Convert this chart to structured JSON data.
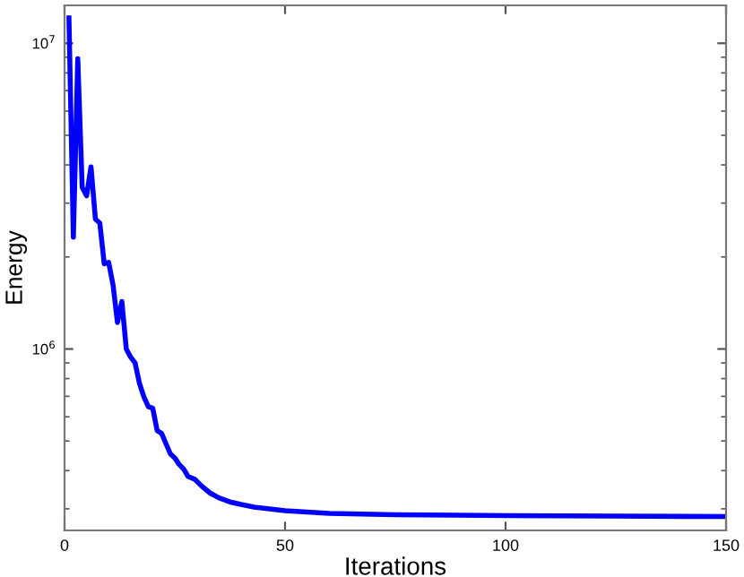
{
  "chart_data": {
    "type": "line",
    "xlabel": "Iterations",
    "ylabel": "Energy",
    "log": "y",
    "xlim": [
      0,
      150
    ],
    "xticks": [
      0,
      50,
      100,
      150
    ],
    "ylim": [
      255000,
      13300000
    ],
    "yticks": [
      {
        "value": 1000000,
        "label": "10$^{6}$"
      },
      {
        "value": 10000000,
        "label": "10$^{7}$"
      }
    ],
    "grid": false,
    "legend": false,
    "marker": "none",
    "line_style": "solid",
    "series": [
      {
        "color": "#0000ff",
        "x": [
          1,
          2,
          3,
          4,
          5,
          6,
          7,
          8,
          9,
          10,
          11,
          12,
          13,
          14,
          15,
          16,
          17,
          18,
          19,
          20,
          21,
          22,
          23,
          24,
          25,
          26,
          27,
          28,
          29.5,
          31,
          33,
          35,
          37.5,
          40,
          43,
          50,
          60,
          75,
          100,
          125,
          150
        ],
        "values": [
          12100000,
          2320000,
          8900000,
          3380000,
          3170000,
          3940000,
          2660000,
          2580000,
          1900000,
          1920000,
          1620000,
          1220000,
          1430000,
          1000000,
          940000,
          900000,
          770000,
          697000,
          648000,
          640000,
          541000,
          530000,
          490000,
          454000,
          440000,
          419000,
          405000,
          383000,
          375000,
          357000,
          338000,
          326000,
          316000,
          310000,
          304000,
          296000,
          290000,
          287000,
          285000,
          284000,
          283000
        ]
      }
    ]
  }
}
